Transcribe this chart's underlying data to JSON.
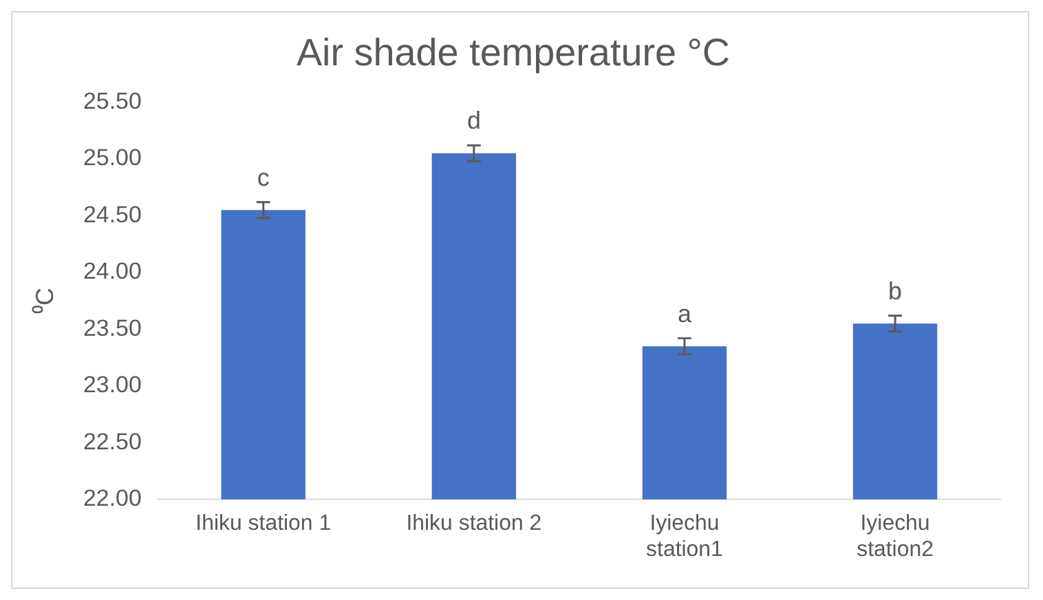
{
  "chart_data": {
    "type": "bar",
    "title": "Air shade temperature °C",
    "ylabel": "⁰C",
    "categories": [
      "Ihiku station 1",
      "Ihiku station 2",
      "Iyiechu station1",
      "Iyiechu station2"
    ],
    "values": [
      24.55,
      25.05,
      23.35,
      23.55
    ],
    "errors": [
      0.07,
      0.07,
      0.07,
      0.07
    ],
    "color": "#4472c4",
    "ylim": [
      22,
      25.5
    ],
    "yticks": [
      {
        "value": 22,
        "label": "22.00"
      },
      {
        "value": 22.5,
        "label": "22.50"
      },
      {
        "value": 23,
        "label": "23.00"
      },
      {
        "value": 23.5,
        "label": "23.50"
      },
      {
        "value": 24,
        "label": "24.00"
      },
      {
        "value": 24.5,
        "label": "24.50"
      },
      {
        "value": 25,
        "label": "25.00"
      },
      {
        "value": 25.5,
        "label": "25.50"
      }
    ],
    "annotations": [
      {
        "text": "c",
        "x": "Ihiku station 1",
        "y": 24.55
      },
      {
        "text": "d",
        "x": "Ihiku station 2",
        "y": 25.05
      },
      {
        "text": "a",
        "x": "Iyiechu station1",
        "y": 23.35
      },
      {
        "text": "b",
        "x": "Iyiechu station2",
        "y": 23.55
      }
    ],
    "grid": false,
    "legend": false
  }
}
